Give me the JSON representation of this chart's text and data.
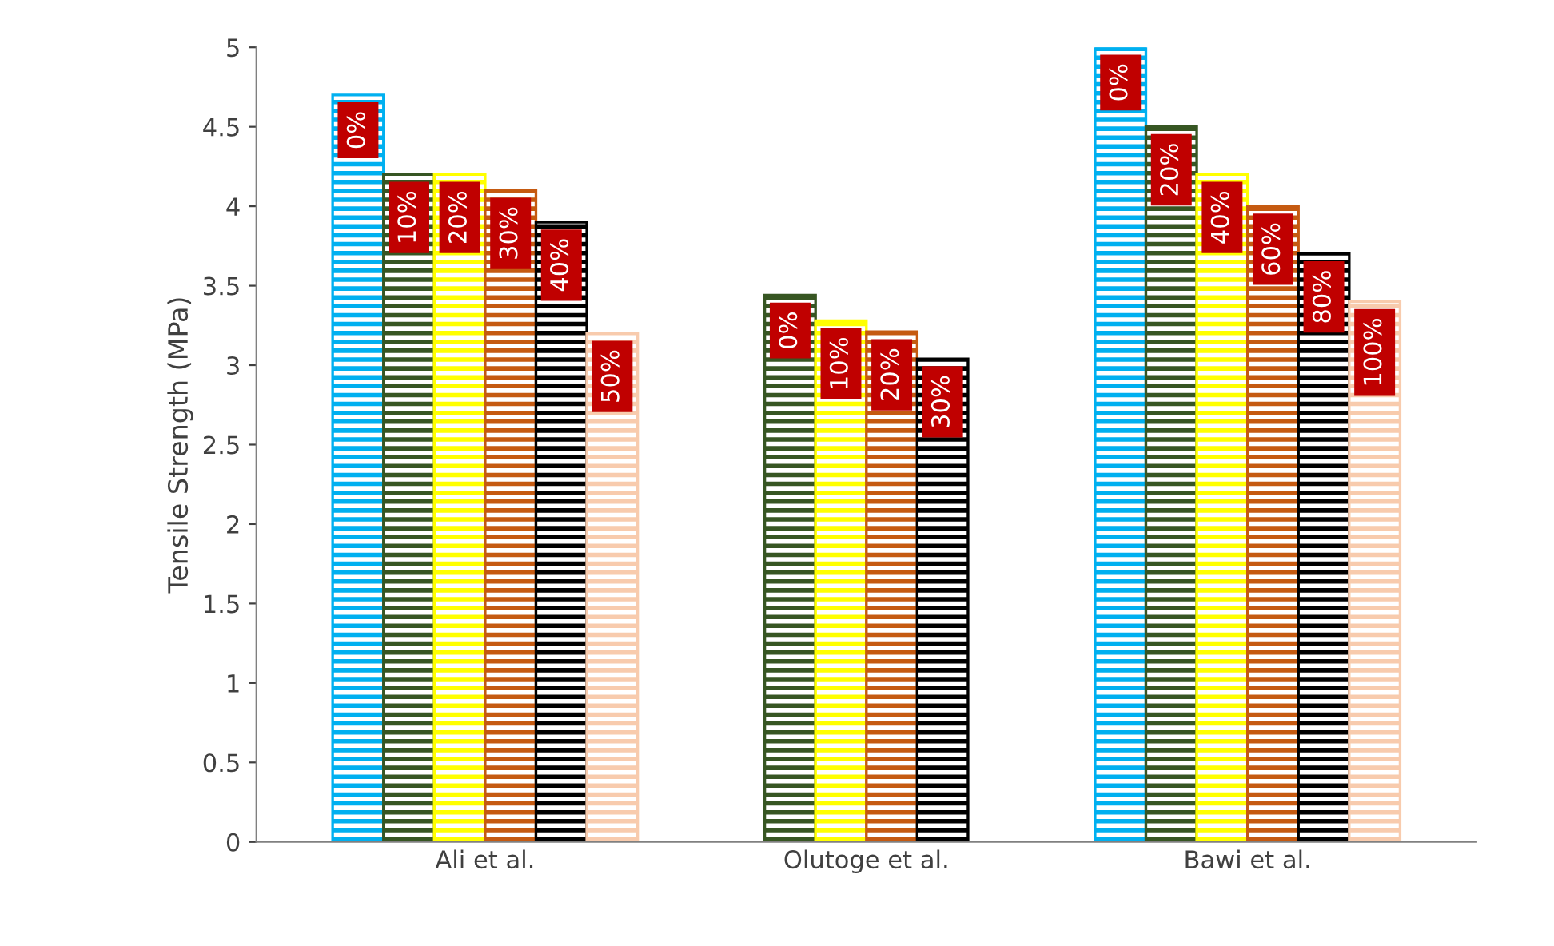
{
  "chart_data": {
    "type": "bar",
    "ylabel": "Tensile Strength (MPa)",
    "categories": [
      "Ali et al.",
      "Olutoge et al.",
      "Bawi et al."
    ],
    "series": [
      {
        "color": "#00b0f0",
        "values": [
          4.7,
          null,
          5.0
        ]
      },
      {
        "color": "#375623",
        "values": [
          4.2,
          3.44,
          4.5
        ]
      },
      {
        "color": "#ffff00",
        "values": [
          4.2,
          3.28,
          4.2
        ]
      },
      {
        "color": "#c55a11",
        "values": [
          4.1,
          3.21,
          4.0
        ]
      },
      {
        "color": "#000000",
        "values": [
          3.9,
          3.04,
          3.7
        ]
      },
      {
        "color": "#f8cbad",
        "values": [
          3.2,
          null,
          3.4
        ]
      }
    ],
    "annotations": [
      "0%",
      "10%",
      "20%",
      "30%",
      "40%",
      "50%",
      "0%",
      "10%",
      "20%",
      "30%",
      "0%",
      "20%",
      "40%",
      "60%",
      "80%",
      "100%"
    ],
    "ylim": [
      0,
      5
    ],
    "yticks": [
      0,
      0.5,
      1,
      1.5,
      2,
      2.5,
      3,
      3.5,
      4,
      4.5,
      5
    ],
    "grid": false,
    "legend": false
  }
}
